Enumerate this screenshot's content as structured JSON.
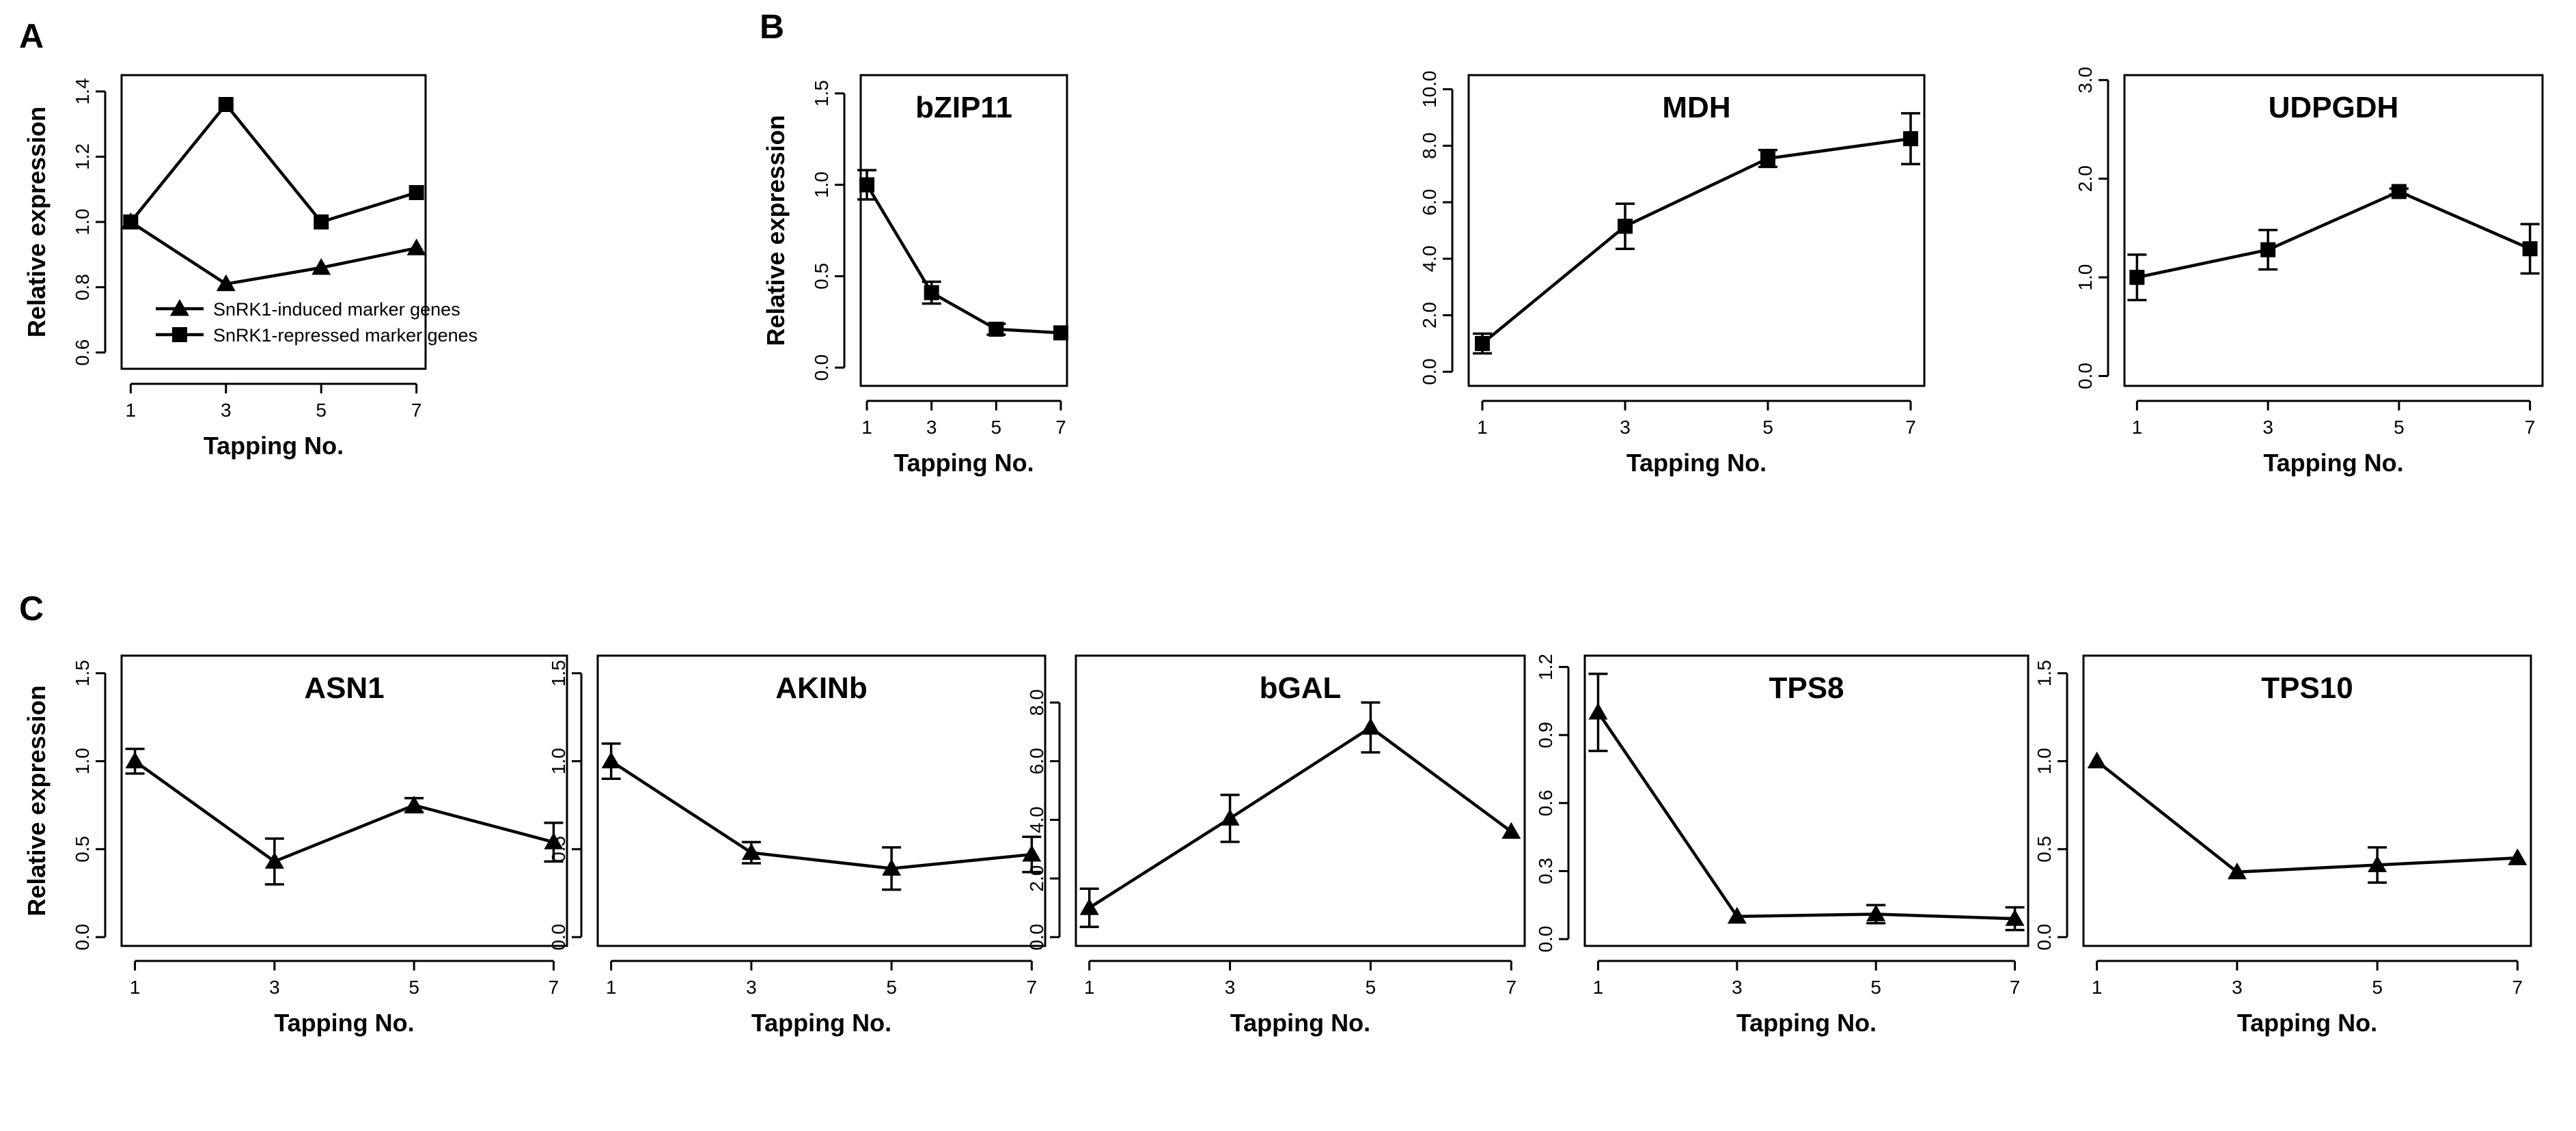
{
  "figure": {
    "panel_letters": [
      "A",
      "B",
      "C"
    ]
  },
  "chart_data": [
    {
      "type": "line",
      "panel": "A",
      "title": "",
      "xlabel": "Tapping No.",
      "ylabel": "Relative expression",
      "x": [
        1,
        3,
        5,
        7
      ],
      "x_ticks": [
        "1",
        "3",
        "5",
        "7"
      ],
      "ylim": [
        0.55,
        1.45
      ],
      "y_ticks": [
        "0.6",
        "0.8",
        "1.0",
        "1.2",
        "1.4"
      ],
      "legend": "bottom-left",
      "series": [
        {
          "name": "SnRK1-induced marker genes",
          "marker": "triangle",
          "values": [
            1.0,
            0.81,
            0.86,
            0.92
          ]
        },
        {
          "name": "SnRK1-repressed marker genes",
          "marker": "square",
          "values": [
            1.0,
            1.36,
            1.0,
            1.09
          ]
        }
      ]
    },
    {
      "type": "line",
      "panel": "B",
      "title": "bZIP11",
      "xlabel": "Tapping No.",
      "ylabel": "Relative expression",
      "x": [
        1,
        3,
        5,
        7
      ],
      "x_ticks": [
        "1",
        "3",
        "5",
        "7"
      ],
      "ylim": [
        -0.1,
        1.6
      ],
      "y_ticks": [
        "0.0",
        "0.5",
        "1.0",
        "1.5"
      ],
      "series": [
        {
          "marker": "square",
          "values": [
            1.0,
            0.41,
            0.21,
            0.19
          ],
          "err": [
            0.08,
            0.06,
            0.03,
            0.0
          ]
        }
      ]
    },
    {
      "type": "line",
      "panel": "B",
      "title": "MDH",
      "xlabel": "Tapping No.",
      "ylabel": "",
      "x": [
        1,
        3,
        5,
        7
      ],
      "x_ticks": [
        "1",
        "3",
        "5",
        "7"
      ],
      "ylim": [
        -0.5,
        10.5
      ],
      "y_ticks": [
        "0.0",
        "2.0",
        "4.0",
        "6.0",
        "8.0",
        "10.0"
      ],
      "series": [
        {
          "marker": "square",
          "values": [
            1.0,
            5.15,
            7.55,
            8.25
          ],
          "err": [
            0.35,
            0.8,
            0.3,
            0.9
          ]
        }
      ]
    },
    {
      "type": "line",
      "panel": "B",
      "title": "UDPGDH",
      "xlabel": "Tapping No.",
      "ylabel": "",
      "x": [
        1,
        3,
        5,
        7
      ],
      "x_ticks": [
        "1",
        "3",
        "5",
        "7"
      ],
      "ylim": [
        -0.1,
        3.05
      ],
      "y_ticks": [
        "0.0",
        "1.0",
        "2.0",
        "3.0"
      ],
      "series": [
        {
          "marker": "square",
          "values": [
            1.0,
            1.28,
            1.87,
            1.29
          ],
          "err": [
            0.23,
            0.2,
            0.03,
            0.25
          ]
        }
      ]
    },
    {
      "type": "line",
      "panel": "C",
      "title": "ASN1",
      "xlabel": "Tapping No.",
      "ylabel": "Relative expression",
      "x": [
        1,
        3,
        5,
        7
      ],
      "x_ticks": [
        "1",
        "3",
        "5",
        "7"
      ],
      "ylim": [
        -0.05,
        1.6
      ],
      "y_ticks": [
        "0.0",
        "0.5",
        "1.0",
        "1.5"
      ],
      "series": [
        {
          "marker": "triangle",
          "values": [
            1.0,
            0.43,
            0.75,
            0.54
          ],
          "err": [
            0.07,
            0.13,
            0.04,
            0.11
          ]
        }
      ]
    },
    {
      "type": "line",
      "panel": "C",
      "title": "AKINb",
      "xlabel": "Tapping No.",
      "ylabel": "",
      "x": [
        1,
        3,
        5,
        7
      ],
      "x_ticks": [
        "1",
        "3",
        "5",
        "7"
      ],
      "ylim": [
        -0.05,
        1.6
      ],
      "y_ticks": [
        "0.0",
        "0.5",
        "1.0",
        "1.5"
      ],
      "series": [
        {
          "marker": "triangle",
          "values": [
            1.0,
            0.48,
            0.39,
            0.47
          ],
          "err": [
            0.1,
            0.06,
            0.12,
            0.1
          ]
        }
      ]
    },
    {
      "type": "line",
      "panel": "C",
      "title": "bGAL",
      "xlabel": "Tapping No.",
      "ylabel": "",
      "x": [
        1,
        3,
        5,
        7
      ],
      "x_ticks": [
        "1",
        "3",
        "5",
        "7"
      ],
      "ylim": [
        -0.3,
        9.6
      ],
      "y_ticks": [
        "0.0",
        "2.0",
        "4.0",
        "6.0",
        "8.0"
      ],
      "series": [
        {
          "marker": "triangle",
          "values": [
            1.0,
            4.05,
            7.15,
            3.6
          ],
          "err": [
            0.65,
            0.8,
            0.85,
            0.0
          ]
        }
      ]
    },
    {
      "type": "line",
      "panel": "C",
      "title": "TPS8",
      "xlabel": "Tapping No.",
      "ylabel": "",
      "x": [
        1,
        3,
        5,
        7
      ],
      "x_ticks": [
        "1",
        "3",
        "5",
        "7"
      ],
      "ylim": [
        -0.03,
        1.25
      ],
      "y_ticks": [
        "0.0",
        "0.3",
        "0.6",
        "0.9",
        "1.2"
      ],
      "series": [
        {
          "marker": "triangle",
          "values": [
            1.0,
            0.1,
            0.11,
            0.09
          ],
          "err": [
            0.17,
            0.0,
            0.04,
            0.05
          ]
        }
      ]
    },
    {
      "type": "line",
      "panel": "C",
      "title": "TPS10",
      "xlabel": "Tapping No.",
      "ylabel": "",
      "x": [
        1,
        3,
        5,
        7
      ],
      "x_ticks": [
        "1",
        "3",
        "5",
        "7"
      ],
      "ylim": [
        -0.05,
        1.6
      ],
      "y_ticks": [
        "0.0",
        "0.5",
        "1.0",
        "1.5"
      ],
      "series": [
        {
          "marker": "triangle",
          "values": [
            1.0,
            0.37,
            0.41,
            0.45
          ],
          "err": [
            0.0,
            0.0,
            0.1,
            0.0
          ]
        }
      ]
    }
  ]
}
